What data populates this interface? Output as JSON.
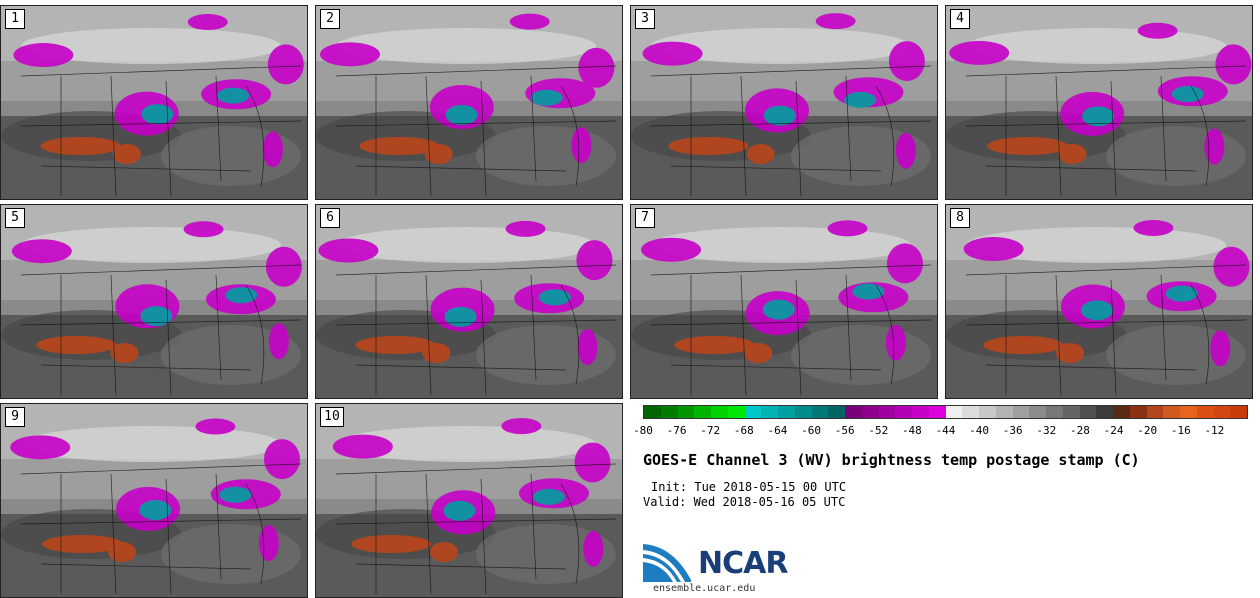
{
  "panels": [
    {
      "label": "1"
    },
    {
      "label": "2"
    },
    {
      "label": "3"
    },
    {
      "label": "4"
    },
    {
      "label": "5"
    },
    {
      "label": "6"
    },
    {
      "label": "7"
    },
    {
      "label": "8"
    },
    {
      "label": "9"
    },
    {
      "label": "10"
    }
  ],
  "colorbar": {
    "colors": [
      "#006400",
      "#007d00",
      "#009600",
      "#00b400",
      "#00d200",
      "#00e600",
      "#00c8c8",
      "#00b4b4",
      "#00a0a0",
      "#008c8c",
      "#007878",
      "#006464",
      "#780078",
      "#8c008c",
      "#a000a0",
      "#b400b4",
      "#c800c8",
      "#dc00dc",
      "#f0f0f0",
      "#dcdcdc",
      "#c8c8c8",
      "#b4b4b4",
      "#a0a0a0",
      "#8c8c8c",
      "#787878",
      "#646464",
      "#505050",
      "#3c3c3c",
      "#5a2a14",
      "#8c3214",
      "#b4461e",
      "#d25a1e",
      "#e6641e",
      "#dc5014",
      "#d24614",
      "#c83c0a"
    ],
    "tick_labels": [
      "-80",
      "-76",
      "-72",
      "-68",
      "-64",
      "-60",
      "-56",
      "-52",
      "-48",
      "-44",
      "-40",
      "-36",
      "-32",
      "-28",
      "-24",
      "-20",
      "-16",
      "-12"
    ]
  },
  "title": "GOES-E Channel 3 (WV) brightness temp postage stamp (C)",
  "init": "Init: Tue 2018-05-15 00 UTC",
  "valid": "Valid: Wed 2018-05-16 05 UTC",
  "logo": {
    "text": "NCAR",
    "url_text": "ensemble.ucar.edu",
    "brand_color": "#1a3e78",
    "swoosh_color": "#1e7cc0"
  }
}
